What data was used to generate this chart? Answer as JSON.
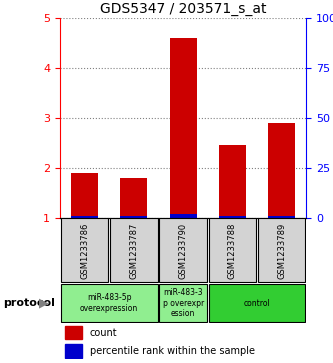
{
  "title": "GDS5347 / 203571_s_at",
  "samples": [
    "GSM1233786",
    "GSM1233787",
    "GSM1233790",
    "GSM1233788",
    "GSM1233789"
  ],
  "red_values": [
    1.9,
    1.8,
    4.6,
    2.45,
    2.9
  ],
  "blue_values": [
    0.04,
    0.04,
    0.07,
    0.04,
    0.04
  ],
  "ylim_left": [
    1,
    5
  ],
  "ylim_right": [
    0,
    100
  ],
  "yticks_left": [
    1,
    2,
    3,
    4,
    5
  ],
  "yticks_right": [
    0,
    25,
    50,
    75,
    100
  ],
  "ytick_labels_right": [
    "0",
    "25",
    "50",
    "75",
    "100%"
  ],
  "proto_ranges": [
    [
      0,
      1,
      "miR-483-5p\noverexpression",
      "#90EE90"
    ],
    [
      2,
      2,
      "miR-483-3\np overexpr\nession",
      "#90EE90"
    ],
    [
      3,
      4,
      "control",
      "#32CD32"
    ]
  ],
  "sample_bg_color": "#D3D3D3",
  "bar_width": 0.55,
  "red_color": "#CC0000",
  "blue_color": "#0000CC",
  "legend_red_label": "count",
  "legend_blue_label": "percentile rank within the sample",
  "protocol_label": "protocol",
  "background_color": "#FFFFFF"
}
